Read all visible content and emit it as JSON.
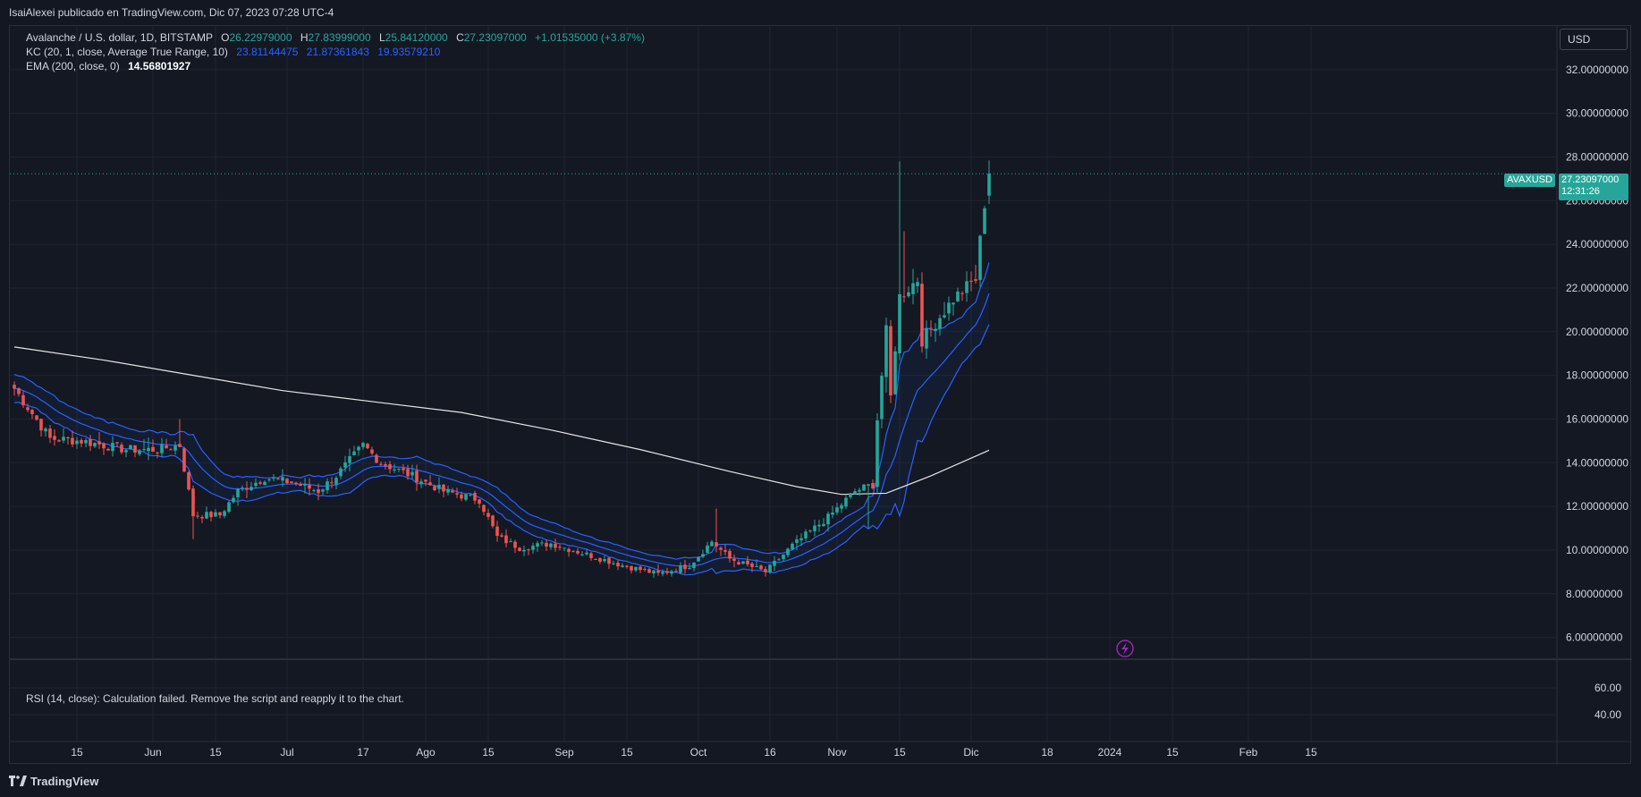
{
  "header": {
    "publisher_line": "IsaiAlexei publicado en TradingView.com, Dic 07, 2023 07:28 UTC-4"
  },
  "legend": {
    "symbol": "Avalanche / U.S. dollar, 1D, BITSTAMP",
    "open_label": "O",
    "open": "26.22979000",
    "high_label": "H",
    "high": "27.83999000",
    "low_label": "L",
    "low": "25.84120000",
    "close_label": "C",
    "close": "27.23097000",
    "change": "+1.01535000 (+3.87%)",
    "kc_label": "KC (20, 1, close, Average True Range, 10)",
    "kc_upper": "23.81144475",
    "kc_middle": "21.87361843",
    "kc_lower": "19.93579210",
    "ema_label": "EMA (200, close, 0)",
    "ema_value": "14.56801927"
  },
  "currency": "USD",
  "price_tag": {
    "symbol": "AVAXUSD",
    "price": "27.23097000",
    "countdown": "12:31:26"
  },
  "rsi_message": "RSI (14, close): Calculation failed. Remove the script and reapply it to the chart.",
  "footer": {
    "brand": "TradingView"
  },
  "colors": {
    "background": "#131722",
    "grid": "#1f2430",
    "up": "#26a69a",
    "down": "#ef5350",
    "kc_band": "#2962ff",
    "ema": "#e6e6e6",
    "text": "#d1d4dc",
    "lightning": "#9c27b0"
  },
  "icons": {
    "lightning": "lightning-icon",
    "logo": "tradingview-logo-icon"
  },
  "chart_data": {
    "type": "candlestick",
    "y_axis": {
      "min": 5,
      "max": 34,
      "ticks": [
        6,
        8,
        10,
        12,
        14,
        16,
        18,
        20,
        22,
        24,
        26,
        28,
        30,
        32
      ],
      "tick_labels": [
        "6.00000000",
        "8.00000000",
        "10.00000000",
        "12.00000000",
        "14.00000000",
        "16.00000000",
        "18.00000000",
        "20.00000000",
        "22.00000000",
        "24.00000000",
        "26.00000000",
        "28.00000000",
        "30.00000000",
        "32.00000000"
      ]
    },
    "rsi_axis": {
      "tick_labels": [
        "60.00",
        "40.00"
      ]
    },
    "x_axis": {
      "labels": [
        "15",
        "Jun",
        "15",
        "Jul",
        "17",
        "Ago",
        "15",
        "Sep",
        "15",
        "Oct",
        "16",
        "Nov",
        "15",
        "Dic",
        "18",
        "2024",
        "15",
        "Feb",
        "15"
      ],
      "label_index": [
        14,
        31,
        45,
        61,
        78,
        92,
        106,
        123,
        137,
        153,
        169,
        184,
        198,
        214,
        231,
        245,
        259,
        276,
        290
      ]
    },
    "last_price": 27.23097,
    "ohlc_anchors": [
      [
        0,
        17.4
      ],
      [
        8,
        15.1
      ],
      [
        15,
        15.0
      ],
      [
        25,
        14.6
      ],
      [
        32,
        14.6
      ],
      [
        37,
        14.8
      ],
      [
        40,
        11.6
      ],
      [
        46,
        11.6
      ],
      [
        50,
        12.7
      ],
      [
        56,
        13.3
      ],
      [
        62,
        13.1
      ],
      [
        68,
        12.7
      ],
      [
        72,
        13.4
      ],
      [
        78,
        14.8
      ],
      [
        82,
        14.0
      ],
      [
        90,
        13.3
      ],
      [
        96,
        12.7
      ],
      [
        104,
        12.3
      ],
      [
        108,
        10.6
      ],
      [
        113,
        10.1
      ],
      [
        120,
        10.3
      ],
      [
        128,
        9.8
      ],
      [
        136,
        9.3
      ],
      [
        144,
        8.9
      ],
      [
        151,
        9.3
      ],
      [
        156,
        10.4
      ],
      [
        160,
        9.6
      ],
      [
        168,
        9.0
      ],
      [
        174,
        10.2
      ],
      [
        182,
        11.5
      ],
      [
        188,
        12.7
      ],
      [
        192,
        13.0
      ],
      [
        193,
        16.0
      ],
      [
        195,
        20.0
      ],
      [
        196,
        17.0
      ],
      [
        198,
        21.6
      ],
      [
        202,
        22.4
      ],
      [
        203,
        19.6
      ],
      [
        210,
        21.5
      ],
      [
        215,
        22.4
      ],
      [
        217,
        25.9
      ],
      [
        218,
        27.23
      ]
    ],
    "wick_spikes": [
      {
        "index": 37,
        "high": 16.0
      },
      {
        "index": 40,
        "low": 10.5
      },
      {
        "index": 157,
        "high": 11.9
      },
      {
        "index": 191,
        "low": 11.0
      },
      {
        "index": 198,
        "high": 27.8
      },
      {
        "index": 199,
        "high": 24.6
      },
      {
        "index": 218,
        "high": 27.84
      }
    ],
    "ema_200": [
      [
        0,
        19.3
      ],
      [
        20,
        18.7
      ],
      [
        40,
        18.0
      ],
      [
        60,
        17.3
      ],
      [
        80,
        16.8
      ],
      [
        100,
        16.3
      ],
      [
        120,
        15.5
      ],
      [
        140,
        14.6
      ],
      [
        160,
        13.6
      ],
      [
        175,
        12.9
      ],
      [
        185,
        12.55
      ],
      [
        195,
        12.6
      ],
      [
        205,
        13.4
      ],
      [
        218,
        14.57
      ]
    ]
  }
}
